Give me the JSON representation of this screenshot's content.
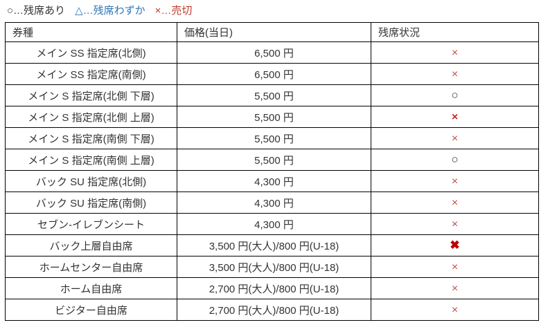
{
  "legend": {
    "items": [
      {
        "key": "available",
        "symbol": "○",
        "separator": "…",
        "label": "残席あり",
        "color": "#333333"
      },
      {
        "key": "few",
        "symbol": "△",
        "separator": "…",
        "label": "残席わずか",
        "color": "#2e75b6"
      },
      {
        "key": "sold-out",
        "symbol": "×",
        "separator": "…",
        "label": "売切",
        "color": "#c0392b"
      }
    ]
  },
  "table": {
    "columns": [
      {
        "key": "ticket-type",
        "label": "券種"
      },
      {
        "key": "price",
        "label": "価格(当日)"
      },
      {
        "key": "availability",
        "label": "残席状況"
      }
    ],
    "status_types": {
      "available": {
        "symbol": "○",
        "color": "#333333",
        "meaning": "残席あり"
      },
      "few": {
        "symbol": "△",
        "color": "#2e75b6",
        "meaning": "残席わずか"
      },
      "sold_out": {
        "symbol": "×",
        "color": "#c0504d",
        "meaning": "売切"
      },
      "sold_out_medium": {
        "symbol": "×",
        "color": "#cc2a2a",
        "meaning": "売切"
      },
      "sold_out_bold": {
        "symbol": "✖",
        "color": "#c00000",
        "meaning": "売切"
      }
    },
    "rows": [
      {
        "ticket_type": "メイン SS 指定席(北側)",
        "price": "6,500 円",
        "status": "sold_out"
      },
      {
        "ticket_type": "メイン SS 指定席(南側)",
        "price": "6,500 円",
        "status": "sold_out"
      },
      {
        "ticket_type": "メイン S 指定席(北側 下層)",
        "price": "5,500 円",
        "status": "available"
      },
      {
        "ticket_type": "メイン S 指定席(北側 上層)",
        "price": "5,500 円",
        "status": "sold_out_medium"
      },
      {
        "ticket_type": "メイン S 指定席(南側 下層)",
        "price": "5,500 円",
        "status": "sold_out"
      },
      {
        "ticket_type": "メイン S 指定席(南側 上層)",
        "price": "5,500 円",
        "status": "available"
      },
      {
        "ticket_type": "バック SU 指定席(北側)",
        "price": "4,300 円",
        "status": "sold_out"
      },
      {
        "ticket_type": "バック SU 指定席(南側)",
        "price": "4,300 円",
        "status": "sold_out"
      },
      {
        "ticket_type": "セブン-イレブンシート",
        "price": "4,300 円",
        "status": "sold_out"
      },
      {
        "ticket_type": "バック上層自由席",
        "price": "3,500 円(大人)/800 円(U-18)",
        "status": "sold_out_bold"
      },
      {
        "ticket_type": "ホームセンター自由席",
        "price": "3,500 円(大人)/800 円(U-18)",
        "status": "sold_out"
      },
      {
        "ticket_type": "ホーム自由席",
        "price": "2,700 円(大人)/800 円(U-18)",
        "status": "sold_out"
      },
      {
        "ticket_type": "ビジター自由席",
        "price": "2,700 円(大人)/800 円(U-18)",
        "status": "sold_out"
      }
    ]
  }
}
